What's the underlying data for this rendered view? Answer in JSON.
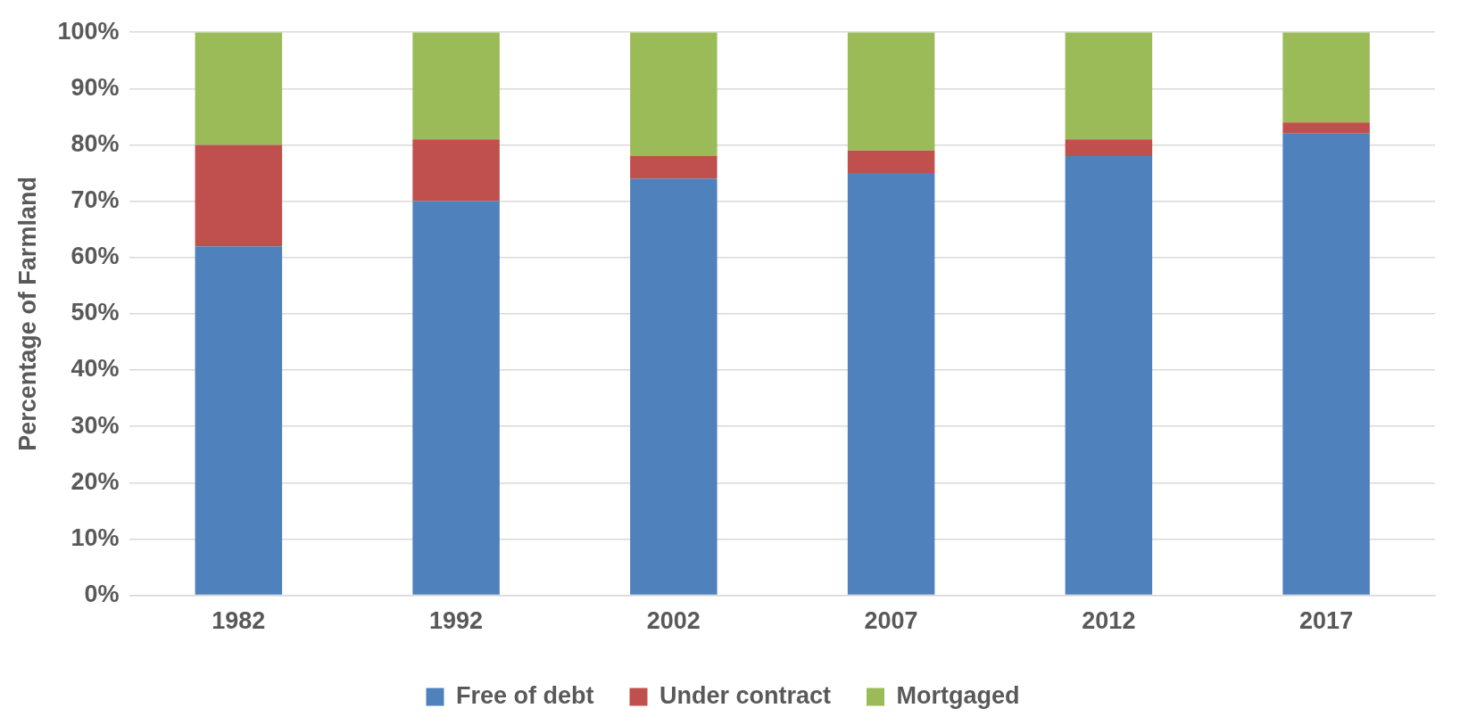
{
  "chart_data": {
    "type": "bar",
    "stacked": true,
    "ylabel": "Percentage of Farmland",
    "categories": [
      "1982",
      "1992",
      "2002",
      "2007",
      "2012",
      "2017"
    ],
    "series": [
      {
        "name": "Free of debt",
        "color": "#4f81bd",
        "values": [
          62,
          70,
          74,
          75,
          78,
          82
        ]
      },
      {
        "name": "Under contract",
        "color": "#c0504d",
        "values": [
          18,
          11,
          4,
          4,
          3,
          2
        ]
      },
      {
        "name": "Mortgaged",
        "color": "#9bbb59",
        "values": [
          20,
          19,
          22,
          21,
          19,
          16
        ]
      }
    ],
    "ylim": [
      0,
      100
    ],
    "yticks": [
      {
        "value": 0,
        "label": "0%"
      },
      {
        "value": 10,
        "label": "10%"
      },
      {
        "value": 20,
        "label": "20%"
      },
      {
        "value": 30,
        "label": "30%"
      },
      {
        "value": 40,
        "label": "40%"
      },
      {
        "value": 50,
        "label": "50%"
      },
      {
        "value": 60,
        "label": "60%"
      },
      {
        "value": 70,
        "label": "70%"
      },
      {
        "value": 80,
        "label": "80%"
      },
      {
        "value": 90,
        "label": "90%"
      },
      {
        "value": 100,
        "label": "100%"
      }
    ],
    "grid": "y",
    "legend": "bottom"
  }
}
